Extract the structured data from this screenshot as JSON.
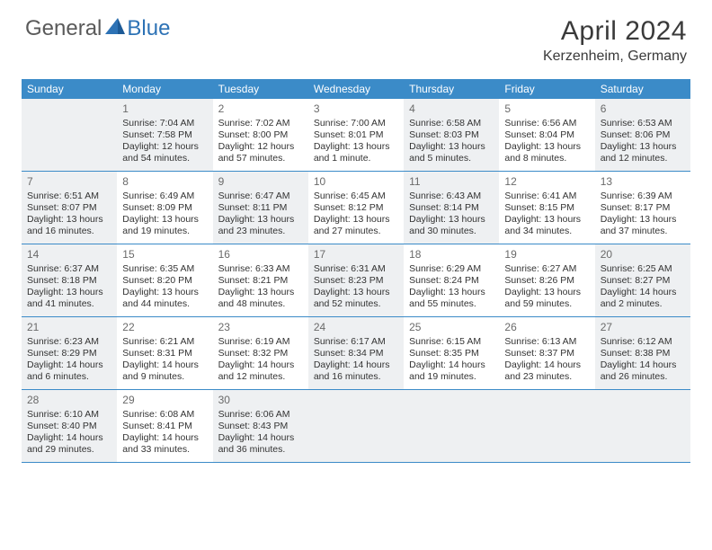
{
  "brand": {
    "part1": "General",
    "part2": "Blue",
    "accent_color": "#2d72b5"
  },
  "title": "April 2024",
  "location": "Kerzenheim, Germany",
  "colors": {
    "header_bg": "#3b8bc8",
    "header_text": "#ffffff",
    "shaded_cell": "#eef0f2",
    "border": "#3b8bc8",
    "body_text": "#333333",
    "daynum_text": "#6a6a6a"
  },
  "day_headers": [
    "Sunday",
    "Monday",
    "Tuesday",
    "Wednesday",
    "Thursday",
    "Friday",
    "Saturday"
  ],
  "weeks": [
    [
      {
        "empty": true,
        "shaded": true
      },
      {
        "num": "1",
        "shaded": true,
        "sunrise": "Sunrise: 7:04 AM",
        "sunset": "Sunset: 7:58 PM",
        "daylight": "Daylight: 12 hours and 54 minutes."
      },
      {
        "num": "2",
        "shaded": false,
        "sunrise": "Sunrise: 7:02 AM",
        "sunset": "Sunset: 8:00 PM",
        "daylight": "Daylight: 12 hours and 57 minutes."
      },
      {
        "num": "3",
        "shaded": false,
        "sunrise": "Sunrise: 7:00 AM",
        "sunset": "Sunset: 8:01 PM",
        "daylight": "Daylight: 13 hours and 1 minute."
      },
      {
        "num": "4",
        "shaded": true,
        "sunrise": "Sunrise: 6:58 AM",
        "sunset": "Sunset: 8:03 PM",
        "daylight": "Daylight: 13 hours and 5 minutes."
      },
      {
        "num": "5",
        "shaded": false,
        "sunrise": "Sunrise: 6:56 AM",
        "sunset": "Sunset: 8:04 PM",
        "daylight": "Daylight: 13 hours and 8 minutes."
      },
      {
        "num": "6",
        "shaded": true,
        "sunrise": "Sunrise: 6:53 AM",
        "sunset": "Sunset: 8:06 PM",
        "daylight": "Daylight: 13 hours and 12 minutes."
      }
    ],
    [
      {
        "num": "7",
        "shaded": true,
        "sunrise": "Sunrise: 6:51 AM",
        "sunset": "Sunset: 8:07 PM",
        "daylight": "Daylight: 13 hours and 16 minutes."
      },
      {
        "num": "8",
        "shaded": false,
        "sunrise": "Sunrise: 6:49 AM",
        "sunset": "Sunset: 8:09 PM",
        "daylight": "Daylight: 13 hours and 19 minutes."
      },
      {
        "num": "9",
        "shaded": true,
        "sunrise": "Sunrise: 6:47 AM",
        "sunset": "Sunset: 8:11 PM",
        "daylight": "Daylight: 13 hours and 23 minutes."
      },
      {
        "num": "10",
        "shaded": false,
        "sunrise": "Sunrise: 6:45 AM",
        "sunset": "Sunset: 8:12 PM",
        "daylight": "Daylight: 13 hours and 27 minutes."
      },
      {
        "num": "11",
        "shaded": true,
        "sunrise": "Sunrise: 6:43 AM",
        "sunset": "Sunset: 8:14 PM",
        "daylight": "Daylight: 13 hours and 30 minutes."
      },
      {
        "num": "12",
        "shaded": false,
        "sunrise": "Sunrise: 6:41 AM",
        "sunset": "Sunset: 8:15 PM",
        "daylight": "Daylight: 13 hours and 34 minutes."
      },
      {
        "num": "13",
        "shaded": false,
        "sunrise": "Sunrise: 6:39 AM",
        "sunset": "Sunset: 8:17 PM",
        "daylight": "Daylight: 13 hours and 37 minutes."
      }
    ],
    [
      {
        "num": "14",
        "shaded": true,
        "sunrise": "Sunrise: 6:37 AM",
        "sunset": "Sunset: 8:18 PM",
        "daylight": "Daylight: 13 hours and 41 minutes."
      },
      {
        "num": "15",
        "shaded": false,
        "sunrise": "Sunrise: 6:35 AM",
        "sunset": "Sunset: 8:20 PM",
        "daylight": "Daylight: 13 hours and 44 minutes."
      },
      {
        "num": "16",
        "shaded": false,
        "sunrise": "Sunrise: 6:33 AM",
        "sunset": "Sunset: 8:21 PM",
        "daylight": "Daylight: 13 hours and 48 minutes."
      },
      {
        "num": "17",
        "shaded": true,
        "sunrise": "Sunrise: 6:31 AM",
        "sunset": "Sunset: 8:23 PM",
        "daylight": "Daylight: 13 hours and 52 minutes."
      },
      {
        "num": "18",
        "shaded": false,
        "sunrise": "Sunrise: 6:29 AM",
        "sunset": "Sunset: 8:24 PM",
        "daylight": "Daylight: 13 hours and 55 minutes."
      },
      {
        "num": "19",
        "shaded": false,
        "sunrise": "Sunrise: 6:27 AM",
        "sunset": "Sunset: 8:26 PM",
        "daylight": "Daylight: 13 hours and 59 minutes."
      },
      {
        "num": "20",
        "shaded": true,
        "sunrise": "Sunrise: 6:25 AM",
        "sunset": "Sunset: 8:27 PM",
        "daylight": "Daylight: 14 hours and 2 minutes."
      }
    ],
    [
      {
        "num": "21",
        "shaded": true,
        "sunrise": "Sunrise: 6:23 AM",
        "sunset": "Sunset: 8:29 PM",
        "daylight": "Daylight: 14 hours and 6 minutes."
      },
      {
        "num": "22",
        "shaded": false,
        "sunrise": "Sunrise: 6:21 AM",
        "sunset": "Sunset: 8:31 PM",
        "daylight": "Daylight: 14 hours and 9 minutes."
      },
      {
        "num": "23",
        "shaded": false,
        "sunrise": "Sunrise: 6:19 AM",
        "sunset": "Sunset: 8:32 PM",
        "daylight": "Daylight: 14 hours and 12 minutes."
      },
      {
        "num": "24",
        "shaded": true,
        "sunrise": "Sunrise: 6:17 AM",
        "sunset": "Sunset: 8:34 PM",
        "daylight": "Daylight: 14 hours and 16 minutes."
      },
      {
        "num": "25",
        "shaded": false,
        "sunrise": "Sunrise: 6:15 AM",
        "sunset": "Sunset: 8:35 PM",
        "daylight": "Daylight: 14 hours and 19 minutes."
      },
      {
        "num": "26",
        "shaded": false,
        "sunrise": "Sunrise: 6:13 AM",
        "sunset": "Sunset: 8:37 PM",
        "daylight": "Daylight: 14 hours and 23 minutes."
      },
      {
        "num": "27",
        "shaded": true,
        "sunrise": "Sunrise: 6:12 AM",
        "sunset": "Sunset: 8:38 PM",
        "daylight": "Daylight: 14 hours and 26 minutes."
      }
    ],
    [
      {
        "num": "28",
        "shaded": true,
        "sunrise": "Sunrise: 6:10 AM",
        "sunset": "Sunset: 8:40 PM",
        "daylight": "Daylight: 14 hours and 29 minutes."
      },
      {
        "num": "29",
        "shaded": false,
        "sunrise": "Sunrise: 6:08 AM",
        "sunset": "Sunset: 8:41 PM",
        "daylight": "Daylight: 14 hours and 33 minutes."
      },
      {
        "num": "30",
        "shaded": true,
        "sunrise": "Sunrise: 6:06 AM",
        "sunset": "Sunset: 8:43 PM",
        "daylight": "Daylight: 14 hours and 36 minutes."
      },
      {
        "empty": true,
        "shaded": true
      },
      {
        "empty": true,
        "shaded": true
      },
      {
        "empty": true,
        "shaded": true
      },
      {
        "empty": true,
        "shaded": true
      }
    ]
  ]
}
